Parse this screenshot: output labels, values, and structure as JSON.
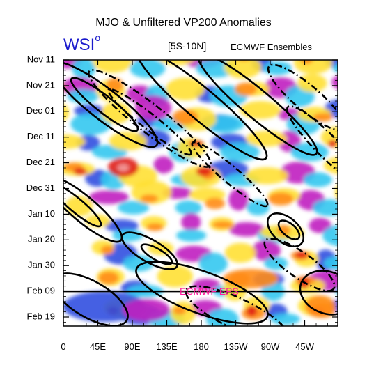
{
  "chart_data": {
    "type": "heatmap",
    "title": "MJO & Unfiltered VP200 Anomalies",
    "logo_text": "WSI",
    "logo_mark": "o",
    "region_label": "[5S-10N]",
    "source_label": "ECMWF Ensembles",
    "x_ticks": [
      "0",
      "45E",
      "90E",
      "135E",
      "180",
      "135W",
      "90W",
      "45W"
    ],
    "y_ticks": [
      "Nov 11",
      "Nov 21",
      "Dec 01",
      "Dec 11",
      "Dec 21",
      "Dec 31",
      "Jan 10",
      "Jan 20",
      "Jan 30",
      "Feb 09",
      "Feb 19"
    ],
    "forecast_line_label": "ECMWF EPS",
    "forecast_line_date": "Feb 09",
    "colors": {
      "strong_negative": "#c020c0",
      "negative": "#3050e0",
      "weak_negative": "#33c8f0",
      "neutral": "#ffffff",
      "weak_positive": "#ffe033",
      "positive": "#ff8c1a",
      "strong_positive": "#e0201a",
      "annotation": "#ff1a9c",
      "logo": "#1a1acc"
    }
  }
}
